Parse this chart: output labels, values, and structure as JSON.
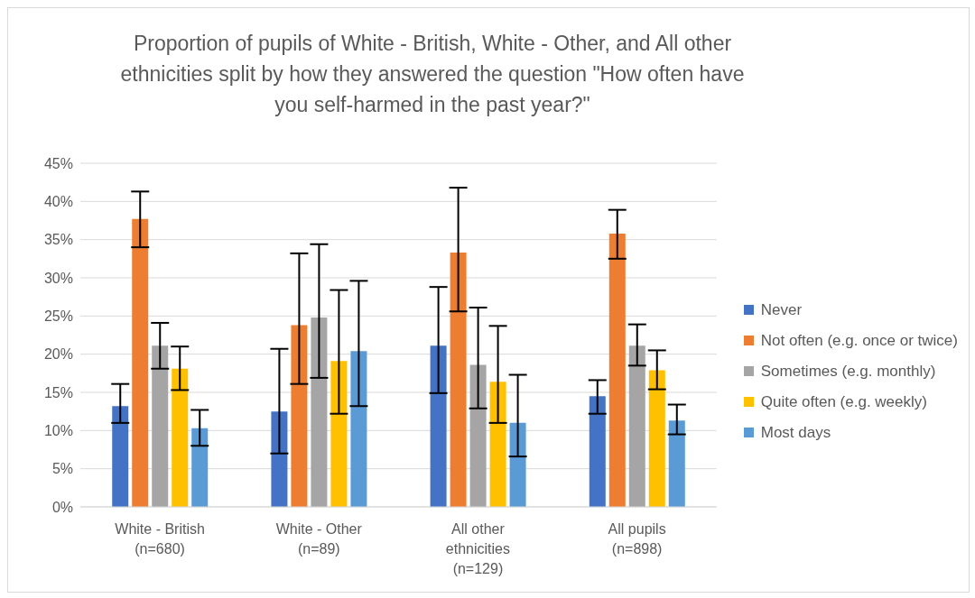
{
  "chart_data": {
    "type": "bar",
    "title": "Proportion of pupils of White - British, White - Other, and All other ethnicities split by how they answered the question \"How often have you self-harmed in the past year?\"",
    "categories": [
      "White - British (n=680)",
      "White - Other (n=89)",
      "All other ethnicities (n=129)",
      "All pupils (n=898)"
    ],
    "series": [
      {
        "name": "Never",
        "color": "#4472c4",
        "values": [
          13.2,
          12.5,
          21.1,
          14.5
        ],
        "errors": [
          [
            11.0,
            16.1
          ],
          [
            7.0,
            20.7
          ],
          [
            14.9,
            28.8
          ],
          [
            12.2,
            16.6
          ]
        ]
      },
      {
        "name": "Not often (e.g. once or twice)",
        "color": "#ed7d31",
        "values": [
          37.7,
          23.8,
          33.3,
          35.8
        ],
        "errors": [
          [
            34.0,
            41.3
          ],
          [
            16.1,
            33.2
          ],
          [
            25.6,
            41.8
          ],
          [
            32.5,
            38.9
          ]
        ]
      },
      {
        "name": "Sometimes (e.g. monthly)",
        "color": "#a5a5a5",
        "values": [
          21.1,
          24.8,
          18.6,
          21.1
        ],
        "errors": [
          [
            18.1,
            24.1
          ],
          [
            16.9,
            34.4
          ],
          [
            12.9,
            26.1
          ],
          [
            18.5,
            23.9
          ]
        ]
      },
      {
        "name": "Quite often (e.g. weekly)",
        "color": "#ffc000",
        "values": [
          18.1,
          19.1,
          16.4,
          17.9
        ],
        "errors": [
          [
            15.3,
            21.0
          ],
          [
            12.2,
            28.4
          ],
          [
            11.0,
            23.7
          ],
          [
            15.4,
            20.5
          ]
        ]
      },
      {
        "name": "Most days",
        "color": "#5b9bd5",
        "values": [
          10.3,
          20.4,
          11.0,
          11.3
        ],
        "errors": [
          [
            8.0,
            12.7
          ],
          [
            13.2,
            29.6
          ],
          [
            6.6,
            17.3
          ],
          [
            9.5,
            13.4
          ]
        ]
      }
    ],
    "ylim": [
      0,
      45
    ],
    "yticks": [
      {
        "value": 0,
        "label": "0%"
      },
      {
        "value": 5,
        "label": "5%"
      },
      {
        "value": 10,
        "label": "10%"
      },
      {
        "value": 15,
        "label": "15%"
      },
      {
        "value": 20,
        "label": "20%"
      },
      {
        "value": 25,
        "label": "25%"
      },
      {
        "value": 30,
        "label": "30%"
      },
      {
        "value": 35,
        "label": "35%"
      },
      {
        "value": 40,
        "label": "40%"
      },
      {
        "value": 45,
        "label": "45%"
      }
    ],
    "grid": "y",
    "legend": "right"
  }
}
